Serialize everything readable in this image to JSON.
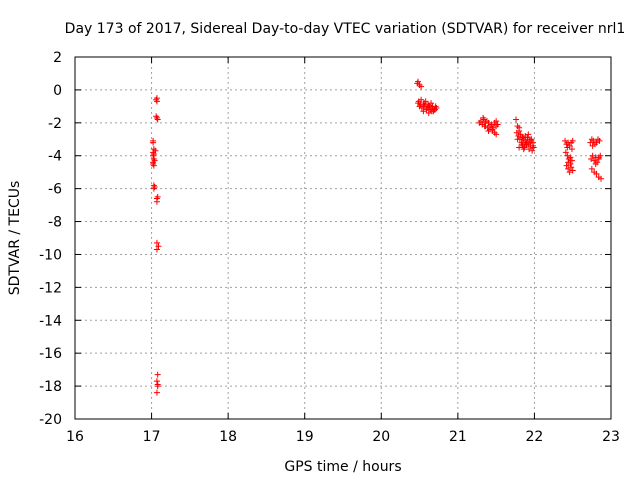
{
  "chart_data": {
    "type": "scatter",
    "title": "Day 173 of 2017, Sidereal Day-to-day VTEC variation (SDTVAR) for receiver nrl1",
    "xlabel": "GPS time / hours",
    "ylabel": "SDTVAR / TECUs",
    "xlim": [
      16,
      23
    ],
    "ylim": [
      -20,
      2
    ],
    "xticks": [
      16,
      17,
      18,
      19,
      20,
      21,
      22,
      23
    ],
    "yticks": [
      2,
      0,
      -2,
      -4,
      -6,
      -8,
      -10,
      -12,
      -14,
      -16,
      -18,
      -20
    ],
    "grid": true,
    "marker": "+",
    "color": "#ff0000",
    "series": [
      {
        "name": "nrl1",
        "x": [
          17.02,
          17.02,
          17.02,
          17.03,
          17.02,
          17.03,
          17.03,
          17.02,
          17.03,
          17.04,
          17.03,
          17.04,
          17.02,
          17.03,
          17.05,
          17.06,
          17.07,
          17.07,
          17.07,
          17.08,
          17.06,
          17.07,
          17.07,
          17.08,
          17.07,
          17.09,
          17.07,
          17.08,
          17.07,
          17.08,
          17.07,
          17.08,
          20.48,
          20.5,
          20.47,
          20.52,
          20.49,
          20.51,
          20.48,
          20.5,
          20.52,
          20.55,
          20.57,
          20.6,
          20.62,
          20.64,
          20.66,
          20.68,
          20.7,
          20.72,
          20.56,
          20.58,
          20.61,
          20.63,
          20.65,
          20.67,
          20.69,
          20.71,
          20.53,
          20.55,
          20.59,
          20.62,
          20.66,
          20.7,
          21.28,
          21.3,
          21.32,
          21.34,
          21.36,
          21.38,
          21.4,
          21.42,
          21.44,
          21.46,
          21.48,
          21.5,
          21.33,
          21.36,
          21.39,
          21.42,
          21.45,
          21.48,
          21.5,
          21.52,
          21.35,
          21.4,
          21.45,
          21.5,
          21.76,
          21.78,
          21.8,
          21.82,
          21.84,
          21.86,
          21.88,
          21.9,
          21.92,
          21.94,
          21.96,
          21.98,
          21.77,
          21.79,
          21.81,
          21.83,
          21.85,
          21.87,
          21.89,
          21.91,
          21.93,
          21.95,
          21.97,
          21.99,
          21.78,
          21.8,
          21.84,
          21.88,
          21.92,
          21.96,
          21.98,
          21.8,
          21.86,
          21.9,
          21.94,
          21.85,
          21.9,
          22.4,
          22.42,
          22.44,
          22.46,
          22.48,
          22.5,
          22.41,
          22.43,
          22.45,
          22.47,
          22.49,
          22.42,
          22.44,
          22.46,
          22.48,
          22.5,
          22.43,
          22.47,
          22.49,
          22.44,
          22.73,
          22.75,
          22.77,
          22.79,
          22.81,
          22.83,
          22.85,
          22.74,
          22.76,
          22.78,
          22.8,
          22.82,
          22.84,
          22.86,
          22.75,
          22.78,
          22.81,
          22.84,
          22.87,
          22.76,
          22.8,
          22.84
        ],
        "y": [
          -3.2,
          -3.8,
          -4.0,
          -4.2,
          -4.4,
          -4.6,
          -3.6,
          -3.1,
          -5.8,
          -5.9,
          -6.0,
          -4.3,
          -4.5,
          -3.9,
          -3.7,
          -0.6,
          -0.5,
          -0.7,
          -1.7,
          -1.8,
          -1.6,
          -6.6,
          -6.8,
          -6.5,
          -9.3,
          -9.5,
          -9.7,
          -17.3,
          -17.7,
          -18.0,
          -18.4,
          -17.9,
          0.5,
          0.3,
          0.4,
          0.2,
          -0.7,
          -0.9,
          -0.8,
          -1.0,
          -0.6,
          -0.9,
          -1.0,
          -1.1,
          -1.0,
          -1.2,
          -1.1,
          -1.3,
          -1.2,
          -1.1,
          -0.8,
          -0.7,
          -0.9,
          -1.0,
          -0.8,
          -1.0,
          -1.2,
          -1.0,
          -1.1,
          -1.3,
          -1.2,
          -1.4,
          -1.3,
          -1.2,
          -2.0,
          -1.9,
          -2.1,
          -1.8,
          -2.2,
          -1.9,
          -2.0,
          -2.2,
          -2.1,
          -2.3,
          -2.0,
          -1.9,
          -1.7,
          -2.0,
          -2.3,
          -2.4,
          -2.5,
          -2.6,
          -2.7,
          -2.1,
          -2.2,
          -2.5,
          -2.4,
          -2.2,
          -1.8,
          -2.2,
          -2.5,
          -2.7,
          -2.9,
          -3.0,
          -3.1,
          -3.2,
          -3.3,
          -3.1,
          -3.0,
          -3.2,
          -2.6,
          -2.8,
          -3.0,
          -3.2,
          -3.4,
          -3.5,
          -3.3,
          -2.9,
          -3.6,
          -3.4,
          -3.7,
          -3.5,
          -3.0,
          -2.3,
          -3.3,
          -2.8,
          -2.7,
          -3.1,
          -3.4,
          -3.5,
          -3.6,
          -3.2,
          -3.0,
          -2.9,
          -3.3,
          -3.1,
          -3.3,
          -3.2,
          -3.4,
          -3.2,
          -3.1,
          -3.8,
          -4.0,
          -4.2,
          -4.5,
          -4.3,
          -4.6,
          -4.8,
          -5.0,
          -4.7,
          -4.9,
          -3.5,
          -4.1,
          -3.6,
          -4.4,
          -3.2,
          -3.0,
          -3.1,
          -3.3,
          -3.2,
          -3.0,
          -3.1,
          -4.2,
          -4.0,
          -4.3,
          -4.1,
          -4.4,
          -4.2,
          -4.0,
          -4.8,
          -5.0,
          -5.1,
          -5.3,
          -5.4,
          -3.4,
          -4.5,
          -4.1
        ]
      }
    ]
  }
}
